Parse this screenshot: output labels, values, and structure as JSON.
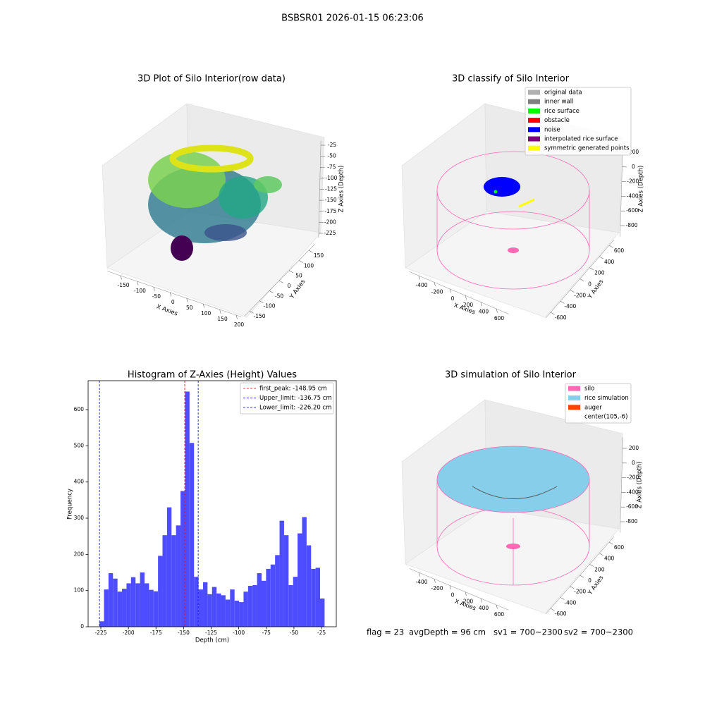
{
  "title": "BSBSR01 2026-01-15 06:23:06",
  "footer": [
    "flag = 23",
    "avgDepth = 96 cm",
    "sv1 = 700~2300",
    "sv2 = 700~2300"
  ],
  "chart_data": [
    {
      "type": "scatter3d",
      "title": "3D Plot of Silo Interior(row data)",
      "xlabel": "X Axies",
      "ylabel": "Y Axies",
      "zlabel": "Z Axies (Depth)",
      "xlim": [
        -190,
        215
      ],
      "ylim": [
        -175,
        180
      ],
      "zlim": [
        -235,
        -15
      ],
      "xticks": [
        -150,
        -100,
        -50,
        0,
        50,
        100,
        150,
        200
      ],
      "yticks": [
        -150,
        -100,
        -50,
        0,
        50,
        100,
        150
      ],
      "zticks": [
        -25,
        -50,
        -75,
        -100,
        -125,
        -150,
        -175,
        -200,
        -225
      ]
    },
    {
      "type": "scatter3d",
      "title": "3D classify of Silo Interior",
      "xlabel": "X Axies",
      "ylabel": "Y Axies",
      "zlabel": "Z Axies (Depth)",
      "xlim": [
        -520,
        760
      ],
      "ylim": [
        -700,
        700
      ],
      "zlim": [
        -950,
        350
      ],
      "xticks": [
        -400,
        -200,
        0,
        200,
        400,
        600
      ],
      "yticks": [
        -600,
        -400,
        -200,
        0,
        200,
        400,
        600
      ],
      "zticks": [
        200,
        0,
        -200,
        -400,
        -600,
        -800
      ],
      "series": [
        {
          "name": "original data",
          "color": "#b0b0b0"
        },
        {
          "name": "inner wall",
          "color": "#808080"
        },
        {
          "name": "rice surface",
          "color": "#00ff00"
        },
        {
          "name": "obstacle",
          "color": "#ff0000"
        },
        {
          "name": "noise",
          "color": "#0000ff"
        },
        {
          "name": "interpolated rice surface",
          "color": "#800080"
        },
        {
          "name": "symmetric generated points",
          "color": "#ffff00"
        }
      ]
    },
    {
      "type": "histogram",
      "title": "Histogram of Z-Axies (Height) Values",
      "xlabel": "Depth (cm)",
      "ylabel": "Frequency",
      "color": "#4d4dff",
      "xlim": [
        -236.5,
        -11.6
      ],
      "ylim": [
        0,
        680
      ],
      "xticks": [
        -225,
        -200,
        -175,
        -150,
        -125,
        -100,
        -75,
        -50,
        -25
      ],
      "yticks": [
        0,
        100,
        200,
        300,
        400,
        500,
        600
      ],
      "bins": [
        -226.2,
        -222.12,
        -218.04,
        -213.96,
        -209.88,
        -205.8,
        -201.72,
        -197.64,
        -193.56,
        -189.48,
        -185.4,
        -181.32,
        -177.24,
        -173.16,
        -169.08,
        -165,
        -160.92,
        -156.84,
        -152.76,
        -148.68,
        -144.6,
        -140.52,
        -136.44,
        -132.36,
        -128.28,
        -124.2,
        -120.12,
        -116.04,
        -111.96,
        -107.88,
        -103.8,
        -99.72,
        -95.64,
        -91.56,
        -87.48,
        -83.4,
        -79.32,
        -75.24,
        -71.16,
        -67.08,
        -63,
        -58.92,
        -54.84,
        -50.76,
        -46.68,
        -42.6,
        -38.52,
        -34.44,
        -30.36,
        -26.28,
        -22.2
      ],
      "values": [
        15,
        103,
        148,
        133,
        97,
        105,
        120,
        137,
        120,
        150,
        120,
        102,
        98,
        196,
        253,
        330,
        253,
        280,
        375,
        650,
        508,
        138,
        103,
        123,
        90,
        110,
        92,
        87,
        75,
        103,
        72,
        68,
        97,
        113,
        115,
        148,
        127,
        160,
        172,
        198,
        293,
        253,
        115,
        138,
        258,
        303,
        225,
        160,
        163,
        78
      ],
      "vlines": [
        {
          "label": "first_peak: -148.95 cm",
          "value": -148.95,
          "color": "#ff0000"
        },
        {
          "label": "Upper_limit: -136.75 cm",
          "value": -136.75,
          "color": "#0000ff"
        },
        {
          "label": "Lower_limit: -226.20 cm",
          "value": -226.2,
          "color": "#0000ff"
        }
      ]
    },
    {
      "type": "surface3d",
      "title": "3D simulation of Silo Interior",
      "xlabel": "X Axies",
      "ylabel": "Y Axies",
      "zlabel": "Z Axies (Depth)",
      "xlim": [
        -520,
        760
      ],
      "ylim": [
        -700,
        700
      ],
      "zlim": [
        -950,
        350
      ],
      "xticks": [
        -400,
        -200,
        0,
        200,
        400,
        600
      ],
      "yticks": [
        -600,
        -400,
        -200,
        0,
        200,
        400,
        600
      ],
      "zticks": [
        200,
        0,
        -200,
        -400,
        -600,
        -800
      ],
      "series": [
        {
          "name": "silo",
          "color": "#ff69b4"
        },
        {
          "name": "rice simulation",
          "color": "#87ceeb"
        },
        {
          "name": "auger",
          "color": "#ff4500"
        },
        {
          "name": "center(105,-6)"
        }
      ]
    }
  ]
}
